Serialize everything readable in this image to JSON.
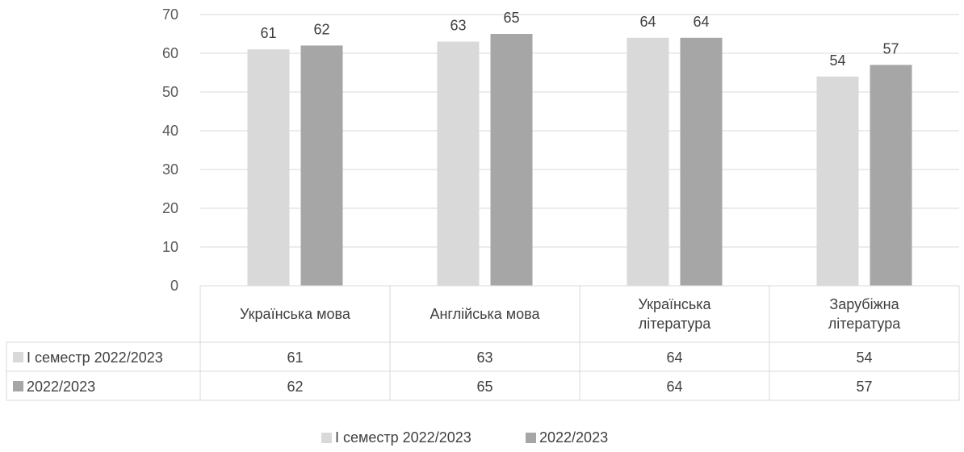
{
  "chart_data": {
    "type": "bar",
    "categories": [
      [
        "Українська мова"
      ],
      [
        "Англійська мова"
      ],
      [
        "Українська",
        "література"
      ],
      [
        "Зарубіжна",
        "література"
      ]
    ],
    "series": [
      {
        "name": "І семестр 2022/2023",
        "values": [
          61,
          63,
          64,
          54
        ],
        "color": "#d9d9d9"
      },
      {
        "name": "2022/2023",
        "values": [
          62,
          65,
          64,
          57
        ],
        "color": "#a6a6a6"
      }
    ],
    "ylim": [
      0,
      70
    ],
    "yticks": [
      0,
      10,
      20,
      30,
      40,
      50,
      60,
      70
    ],
    "grid": true,
    "data_table": true,
    "legend_position": "bottom"
  }
}
